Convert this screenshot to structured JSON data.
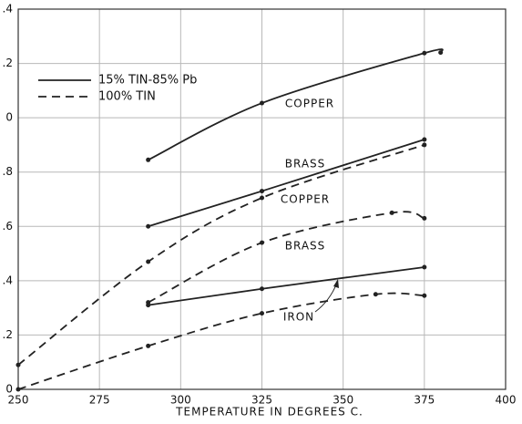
{
  "chart_data": {
    "type": "line",
    "x_label": "TEMPERATURE IN DEGREES C.",
    "xlim": [
      250,
      400
    ],
    "xticks": [
      250,
      275,
      300,
      325,
      350,
      375,
      400
    ],
    "ylim": [
      0,
      1.4
    ],
    "yticks": [
      0,
      {
        "value": 0.2,
        "label": ".2"
      },
      {
        "value": 0.4,
        "label": ".4"
      },
      {
        "value": 0.6,
        "label": ".6"
      },
      {
        "value": 0.8,
        "label": ".8"
      },
      {
        "value": 1.0,
        "label": "0"
      },
      {
        "value": 1.2,
        "label": ".2"
      },
      {
        "value": 1.4,
        "label": ".4"
      }
    ],
    "grid": true,
    "legend": [
      {
        "label": "15% TIN-85% Pb",
        "style": "solid"
      },
      {
        "label": "100% TIN",
        "style": "dashed"
      }
    ],
    "series": [
      {
        "label": "COPPER",
        "style": "solid",
        "color": "#222222",
        "x": [
          290,
          325,
          375,
          380
        ],
        "values": [
          0.845,
          1.054,
          1.238,
          1.24
        ]
      },
      {
        "label": "BRASS",
        "style": "solid",
        "color": "#222222",
        "x": [
          290,
          325,
          375
        ],
        "values": [
          0.6,
          0.73,
          0.92
        ]
      },
      {
        "label": "COPPER",
        "style": "dashed",
        "color": "#222222",
        "x": [
          250,
          290,
          325,
          375
        ],
        "values": [
          0.09,
          0.47,
          0.705,
          0.9
        ]
      },
      {
        "label": "BRASS",
        "style": "dashed",
        "color": "#222222",
        "x": [
          290,
          325,
          365,
          375
        ],
        "values": [
          0.32,
          0.54,
          0.65,
          0.63
        ]
      },
      {
        "label": "IRON",
        "style": "solid",
        "color": "#222222",
        "x": [
          290,
          325,
          375
        ],
        "values": [
          0.31,
          0.37,
          0.45
        ]
      },
      {
        "style": "dashed",
        "color": "#222222",
        "x": [
          250,
          290,
          325,
          360,
          375
        ],
        "values": [
          0,
          0.16,
          0.28,
          0.35,
          0.345
        ]
      }
    ]
  }
}
